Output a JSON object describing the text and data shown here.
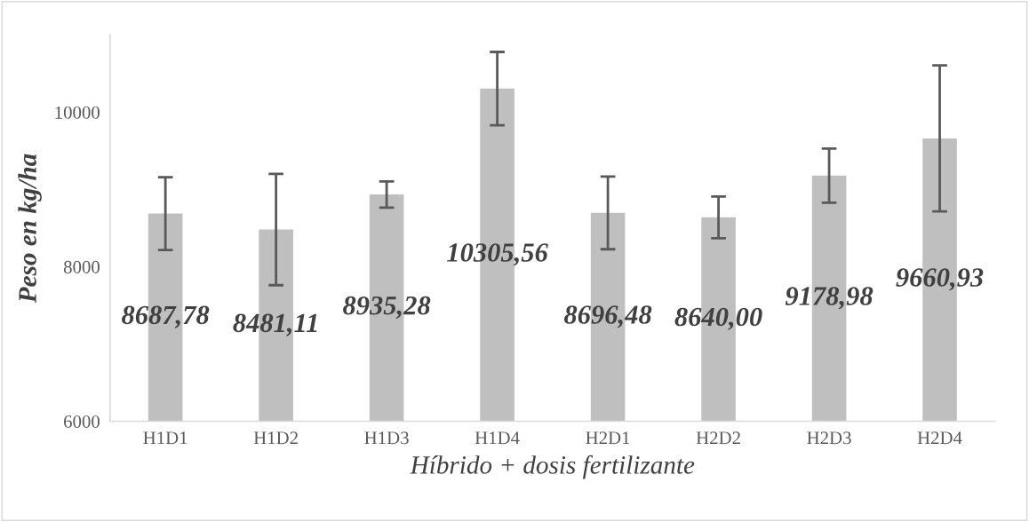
{
  "chart_data": {
    "type": "bar",
    "xlabel": "Híbrido + dosis fertilizante",
    "ylabel": "Peso en kg/ha",
    "categories": [
      "H1D1",
      "H1D2",
      "H1D3",
      "H1D4",
      "H2D1",
      "H2D2",
      "H2D3",
      "H2D4"
    ],
    "values": [
      8687.78,
      8481.11,
      8935.28,
      10305.56,
      8696.48,
      8640.0,
      9178.98,
      9660.93
    ],
    "value_labels": [
      "8687,78",
      "8481,11",
      "8935,28",
      "10305,56",
      "8696,48",
      "8640,00",
      "9178,98",
      "9660,93"
    ],
    "errors": [
      470,
      720,
      170,
      475,
      470,
      270,
      350,
      945
    ],
    "color": "#bfbfbf",
    "ylim": [
      6000,
      11000
    ],
    "yticks": [
      6000,
      8000,
      10000
    ],
    "grid": false,
    "legend": false
  }
}
